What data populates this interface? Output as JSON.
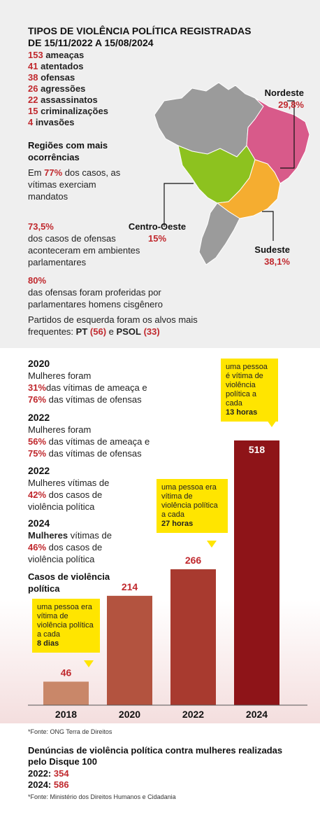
{
  "top": {
    "title": "TIPOS DE VIOLÊNCIA POLÍTICA REGISTRADAS DE 15/11/2022 A 15/08/2024",
    "counts": [
      {
        "value": "153",
        "label": "ameaças"
      },
      {
        "value": "41",
        "label": "atentados"
      },
      {
        "value": "38",
        "label": "ofensas"
      },
      {
        "value": "26",
        "label": "agressões"
      },
      {
        "value": "22",
        "label": "assassinatos"
      },
      {
        "value": "15",
        "label": "criminalizações"
      },
      {
        "value": "4",
        "label": "invasões"
      }
    ],
    "regions_heading": "Regiões com mais ocorrências",
    "stat1": {
      "prefix": "Em",
      "value": "77%",
      "text": "dos casos, as vítimas exerciam mandatos"
    },
    "stat2": {
      "value": "73,5%",
      "text": "dos casos de ofensas aconteceram em ambientes parlamentares"
    },
    "stat3": {
      "value": "80%",
      "text": "das ofensas foram proferidas por parlamentares homens cisgênero"
    },
    "parties": {
      "text": "Partidos de esquerda foram os alvos mais frequentes:",
      "pt_label": "PT",
      "pt_value": "(56)",
      "and": "e",
      "psol_label": "PSOL",
      "psol_value": "(33)"
    },
    "map_regions": [
      {
        "name": "Nordeste",
        "value": "29,8%",
        "color": "#d85a8a"
      },
      {
        "name": "Centro-Oeste",
        "value": "15%",
        "color": "#8dc21f"
      },
      {
        "name": "Sudeste",
        "value": "38,1%",
        "color": "#f5ad30"
      }
    ],
    "map_other_color": "#9b9b9b"
  },
  "women": [
    {
      "year": "2020",
      "line1": "Mulheres foram",
      "v1": "31%",
      "t1": "das vítimas de ameaça e",
      "v2": "76%",
      "t2": "das vítimas de ofensas"
    },
    {
      "year": "2022",
      "line1": "Mulheres foram",
      "v1": "56%",
      "t1": "das vítimas de ameaça e",
      "v2": "75%",
      "t2": "das vítimas de ofensas"
    },
    {
      "year": "2022",
      "line1": "Mulheres vítimas de",
      "v1": "42%",
      "t1": "dos casos de",
      "t2": "violência política"
    },
    {
      "year": "2024",
      "line1b": "Mulheres",
      "line1": "vítimas de",
      "v1": "46%",
      "t1": "dos casos de",
      "t2": "violência política"
    }
  ],
  "chart_data": {
    "type": "bar",
    "title": "Casos de violência política",
    "categories": [
      "2018",
      "2020",
      "2022",
      "2024"
    ],
    "values": [
      46,
      214,
      266,
      518
    ],
    "colors": [
      "#c98769",
      "#b3533f",
      "#a83a2f",
      "#8e1418"
    ],
    "annotations": [
      {
        "category": "2018",
        "text": "uma pessoa era vítima de violência política a cada",
        "strong": "8 dias"
      },
      {
        "category": "2022",
        "text": "uma pessoa era vítima de violência política a cada",
        "strong": "27 horas"
      },
      {
        "category": "2024",
        "text": "uma pessoa é vítima de violência política a cada",
        "strong": "13 horas"
      }
    ]
  },
  "footer": {
    "source1": "*Fonte: ONG Terra de Direitos",
    "disque_title": "Denúncias de violência política contra mulheres realizadas pelo Disque 100",
    "disque": [
      {
        "year": "2022:",
        "value": "354"
      },
      {
        "year": "2024:",
        "value": "586"
      }
    ],
    "source2": "*Fonte: Ministério dos Direitos Humanos e Cidadania"
  }
}
